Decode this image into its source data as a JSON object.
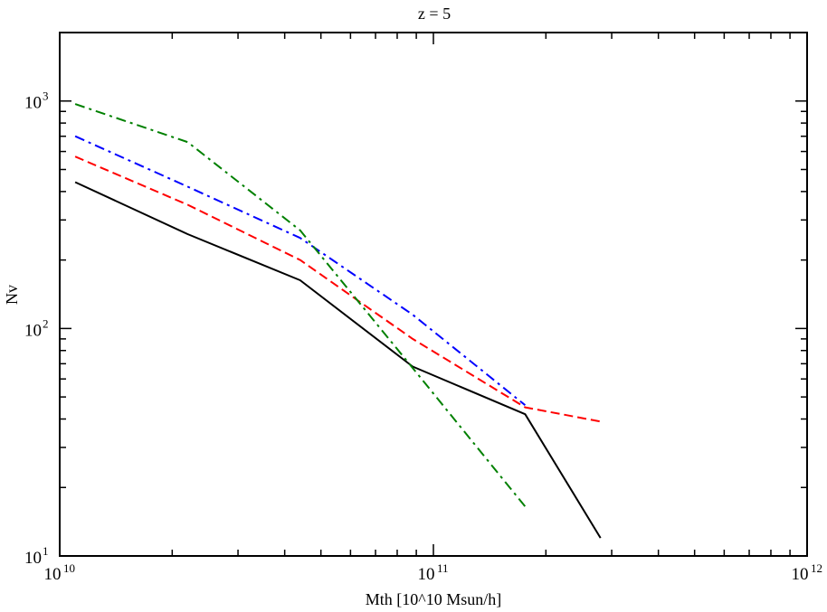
{
  "chart_data": {
    "type": "line",
    "title": "z = 5",
    "xlabel": "Mth [10^10 Msun/h]",
    "ylabel": "Nv",
    "xscale": "log",
    "yscale": "log",
    "xlim": [
      10000000000,
      1000000000000
    ],
    "ylim": [
      10,
      2000
    ],
    "grid": false,
    "legend": "none",
    "x_ticks": [
      {
        "base": "10",
        "exp": "10",
        "value": 10000000000
      },
      {
        "base": "10",
        "exp": "11",
        "value": 100000000000
      },
      {
        "base": "10",
        "exp": "12",
        "value": 1000000000000
      }
    ],
    "y_ticks": [
      {
        "base": "10",
        "exp": "1",
        "value": 10
      },
      {
        "base": "10",
        "exp": "2",
        "value": 100
      },
      {
        "base": "10",
        "exp": "3",
        "value": 1000
      }
    ],
    "series": [
      {
        "color": "#000000",
        "style": "solid",
        "x": [
          11000000000,
          22000000000,
          44000000000,
          88000000000,
          176000000000,
          280000000000
        ],
        "y": [
          440,
          260,
          163,
          68,
          42,
          12
        ]
      },
      {
        "color": "#ff0000",
        "style": "dashed",
        "x": [
          11000000000,
          22000000000,
          44000000000,
          88000000000,
          176000000000,
          280000000000
        ],
        "y": [
          570,
          350,
          200,
          90,
          45,
          39
        ]
      },
      {
        "color": "#0000ff",
        "style": "dashdot",
        "x": [
          11000000000,
          22000000000,
          44000000000,
          88000000000,
          176000000000
        ],
        "y": [
          700,
          420,
          250,
          115,
          46
        ]
      },
      {
        "color": "#008000",
        "style": "dashdot",
        "x": [
          11000000000,
          22000000000,
          44000000000,
          88000000000,
          176000000000
        ],
        "y": [
          970,
          660,
          270,
          67,
          16.5
        ]
      }
    ]
  }
}
